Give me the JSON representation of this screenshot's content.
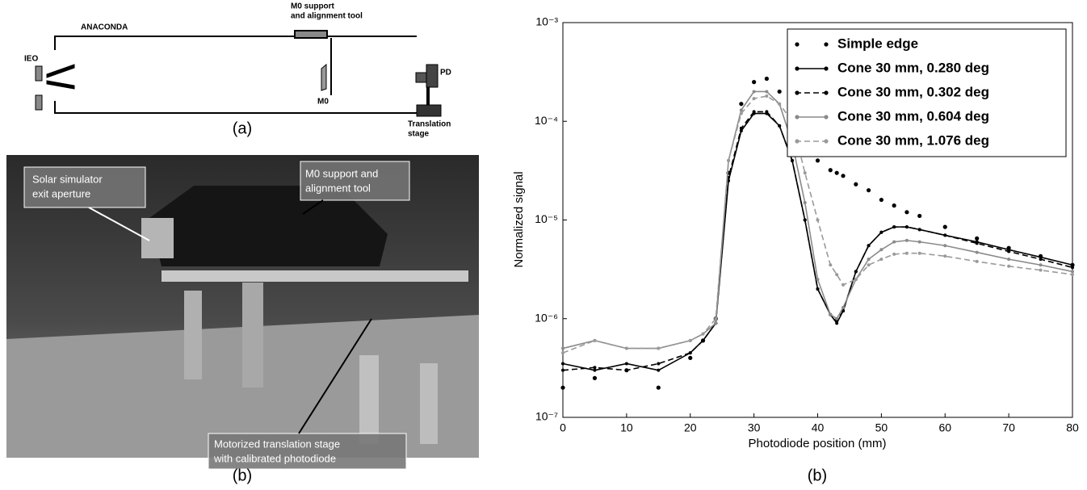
{
  "diagram": {
    "labels": {
      "anaconda": "ANACONDA",
      "m0_support": [
        "M0 support",
        "and alignment tool"
      ],
      "ieo": "IEO",
      "m0": "M0",
      "pd": "PD",
      "translation_stage": [
        "Translation",
        "stage"
      ]
    },
    "caption": "(a)"
  },
  "photo": {
    "callouts": [
      [
        "Solar simulator",
        "exit aperture"
      ],
      [
        "M0 support and",
        "alignment tool"
      ],
      [
        "Motorized translation stage",
        "with calibrated photodiode"
      ]
    ],
    "caption": "(b)"
  },
  "chart_data": {
    "type": "line",
    "caption": "(b)",
    "x_label": "Photodiode position (mm)",
    "y_label": "Normalized signal",
    "x": [
      0,
      5,
      10,
      15,
      20,
      22,
      24,
      26,
      28,
      30,
      32,
      34,
      36,
      38,
      40,
      42,
      43,
      44,
      46,
      48,
      50,
      52,
      54,
      56,
      60,
      65,
      70,
      75,
      80
    ],
    "series": [
      {
        "name": "Simple edge",
        "color": "#000000",
        "line": "none",
        "values": [
          2e-07,
          2.5e-07,
          3e-07,
          2e-07,
          4e-07,
          6e-07,
          1e-06,
          3e-05,
          0.00015,
          0.00025,
          0.00027,
          0.0002,
          0.00011,
          6.5e-05,
          4e-05,
          3.2e-05,
          3e-05,
          2.8e-05,
          2.3e-05,
          2e-05,
          1.6e-05,
          1.4e-05,
          1.2e-05,
          1.1e-05,
          8.5e-06,
          6.5e-06,
          5.2e-06,
          4.3e-06,
          3.5e-06
        ]
      },
      {
        "name": "Cone 30 mm, 0.280 deg",
        "color": "#000000",
        "line": "solid",
        "values": [
          3.5e-07,
          3e-07,
          3.5e-07,
          3e-07,
          4.5e-07,
          6e-07,
          9e-07,
          2.5e-05,
          8e-05,
          0.00012,
          0.00012,
          9e-05,
          4e-05,
          1e-05,
          2e-06,
          1.1e-06,
          9e-07,
          1.2e-06,
          3e-06,
          5.5e-06,
          7.5e-06,
          8.5e-06,
          8.5e-06,
          8e-06,
          7e-06,
          6e-06,
          5e-06,
          4.2e-06,
          3.5e-06
        ]
      },
      {
        "name": "Cone 30 mm, 0.302 deg",
        "color": "#000000",
        "line": "dashed",
        "values": [
          3e-07,
          3.2e-07,
          3e-07,
          3.5e-07,
          4.5e-07,
          6e-07,
          9e-07,
          2.7e-05,
          8.5e-05,
          0.000125,
          0.000125,
          9e-05,
          4e-05,
          1e-05,
          2e-06,
          1.1e-06,
          9.5e-07,
          1.2e-06,
          3e-06,
          5.5e-06,
          7.5e-06,
          8.5e-06,
          8.5e-06,
          8e-06,
          7e-06,
          5.8e-06,
          4.8e-06,
          4e-06,
          3.3e-06
        ]
      },
      {
        "name": "Cone 30 mm, 0.604 deg",
        "color": "#8a8a8a",
        "line": "solid",
        "values": [
          5e-07,
          6e-07,
          5e-07,
          5e-07,
          6e-07,
          7e-07,
          9e-07,
          4e-05,
          0.00013,
          0.0002,
          0.0002,
          0.00015,
          6e-05,
          1.5e-05,
          2.5e-06,
          1.1e-06,
          1e-06,
          1.3e-06,
          2.5e-06,
          4e-06,
          5e-06,
          6e-06,
          6.2e-06,
          6e-06,
          5.5e-06,
          4.7e-06,
          4e-06,
          3.5e-06,
          3e-06
        ]
      },
      {
        "name": "Cone 30 mm, 1.076 deg",
        "color": "#9a9a9a",
        "line": "dashed",
        "values": [
          4.5e-07,
          6e-07,
          5e-07,
          5e-07,
          6e-07,
          7e-07,
          1e-06,
          4e-05,
          0.00012,
          0.00017,
          0.00018,
          0.00015,
          0.0001,
          3e-05,
          1e-05,
          3.5e-06,
          2.8e-06,
          2.2e-06,
          2.5e-06,
          3.5e-06,
          4e-06,
          4.5e-06,
          4.6e-06,
          4.6e-06,
          4.3e-06,
          3.8e-06,
          3.4e-06,
          3.1e-06,
          2.8e-06
        ]
      }
    ],
    "xlim": [
      0,
      80
    ],
    "xticks": [
      0,
      10,
      20,
      30,
      40,
      50,
      60,
      70,
      80
    ],
    "ylim": [
      1e-07,
      0.001
    ],
    "log_y": true,
    "yticks": [
      {
        "value": 1e-07,
        "label": "10⁻⁷"
      },
      {
        "value": 1e-06,
        "label": "10⁻⁶"
      },
      {
        "value": 1e-05,
        "label": "10⁻⁵"
      },
      {
        "value": 0.0001,
        "label": "10⁻⁴"
      },
      {
        "value": 0.001,
        "label": "10⁻³"
      }
    ],
    "legend": "upper right"
  }
}
